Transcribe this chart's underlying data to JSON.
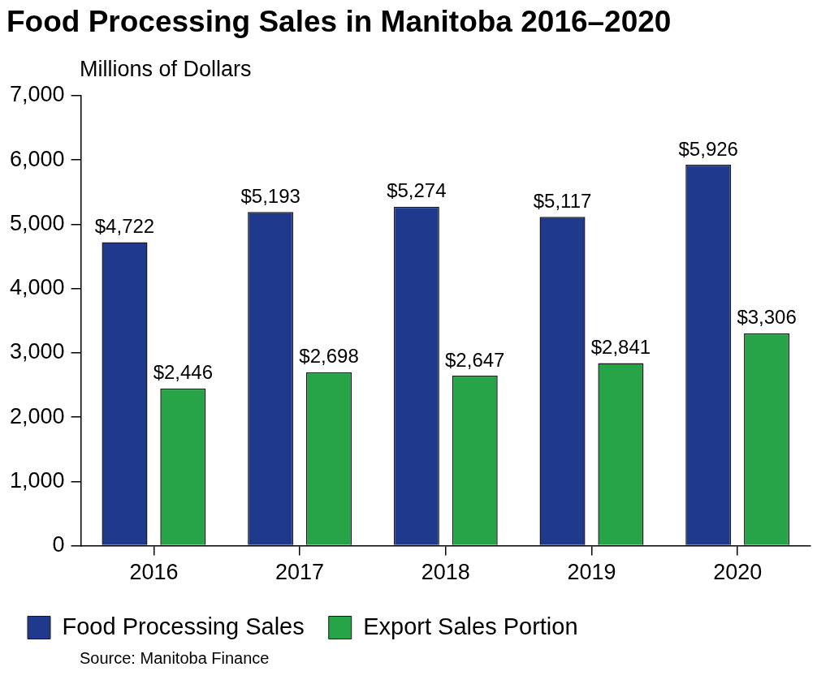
{
  "chart_data": {
    "type": "bar",
    "title": "Food Processing Sales in Manitoba 2016–2020",
    "ylabel": "Millions of Dollars",
    "categories": [
      "2016",
      "2017",
      "2018",
      "2019",
      "2020"
    ],
    "series": [
      {
        "name": "Food Processing Sales",
        "color": "#1f3a8c",
        "values": [
          4722,
          5193,
          5274,
          5117,
          5926
        ],
        "value_labels": [
          "$4,722",
          "$5,193",
          "$5,274",
          "$5,117",
          "$5,926"
        ]
      },
      {
        "name": "Export Sales Portion",
        "color": "#27a348",
        "values": [
          2446,
          2698,
          2647,
          2841,
          3306
        ],
        "value_labels": [
          "$2,446",
          "$2,698",
          "$2,647",
          "$2,841",
          "$3,306"
        ]
      }
    ],
    "ylim": [
      0,
      7000
    ],
    "yticks": [
      {
        "value": 0,
        "label": "0"
      },
      {
        "value": 1000,
        "label": "1,000"
      },
      {
        "value": 2000,
        "label": "2,000"
      },
      {
        "value": 3000,
        "label": "3,000"
      },
      {
        "value": 4000,
        "label": "4,000"
      },
      {
        "value": 5000,
        "label": "5,000"
      },
      {
        "value": 6000,
        "label": "6,000"
      },
      {
        "value": 7000,
        "label": "7,000"
      }
    ],
    "grid": false,
    "legend": "bottom",
    "annotations": [
      "Source: Manitoba Finance"
    ]
  }
}
